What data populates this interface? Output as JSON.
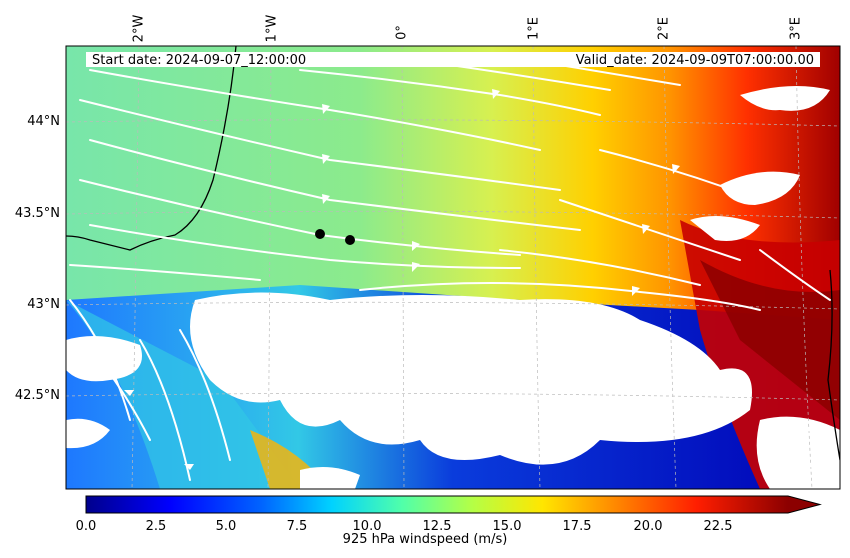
{
  "map": {
    "start_label": "Start date: 2024-09-07_12:00:00",
    "valid_label": "Valid_date: 2024-09-09T07:00:00.00",
    "lon_labels": [
      "2°W",
      "1°W",
      "0°",
      "1°E",
      "2°E",
      "3°E"
    ],
    "lat_labels": [
      "44°N",
      "43.5°N",
      "43°N",
      "42.5°N"
    ],
    "markers": [
      {
        "name": "location-marker-1",
        "lon": -0.62,
        "lat": 43.39
      },
      {
        "name": "location-marker-2",
        "lon": -0.4,
        "lat": 43.35
      }
    ],
    "field": "925 hPa windspeed",
    "colors": {
      "calm": "#0000c8",
      "low": "#1e64ff",
      "mid_low": "#32c8e6",
      "mid": "#78e6a0",
      "mid_high": "#fff000",
      "high": "#ff5000",
      "max": "#8c0000",
      "streamline": "#ffffff",
      "coast": "#000000"
    }
  },
  "colorbar": {
    "label": "925 hPa windspeed (m/s)",
    "ticks": [
      "0.0",
      "2.5",
      "5.0",
      "7.5",
      "10.0",
      "12.5",
      "15.0",
      "17.5",
      "20.0",
      "22.5"
    ],
    "min": 0,
    "max": 25,
    "extend": "max"
  }
}
